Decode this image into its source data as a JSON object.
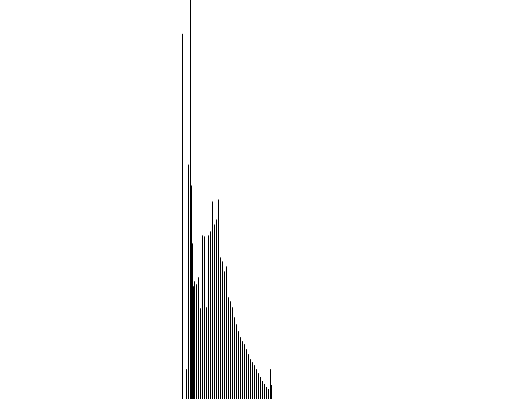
{
  "chart_data": {
    "type": "bar",
    "title": "",
    "xlabel": "",
    "ylabel": "",
    "grid": false,
    "legend": "none",
    "bar_color": "#000000",
    "background_color": "#ffffff",
    "ylim": [
      0,
      400
    ],
    "x": [
      0,
      4,
      6,
      8,
      9,
      10,
      11,
      12,
      14,
      16,
      18,
      20,
      22,
      24,
      26,
      28,
      30,
      32,
      34,
      36,
      38,
      40,
      42,
      44,
      46,
      48,
      50,
      52,
      54,
      56,
      58,
      60,
      62,
      64,
      66,
      68,
      70,
      72,
      74,
      76,
      78,
      80,
      82,
      84,
      86,
      88,
      89
    ],
    "values": [
      366,
      30,
      235,
      400,
      214,
      156,
      113,
      118,
      115,
      122,
      91,
      164,
      163,
      92,
      164,
      168,
      198,
      175,
      180,
      200,
      142,
      138,
      128,
      133,
      102,
      98,
      92,
      82,
      75,
      68,
      62,
      58,
      55,
      50,
      45,
      40,
      37,
      34,
      30,
      26,
      22,
      18,
      15,
      12,
      10,
      30,
      14
    ]
  }
}
